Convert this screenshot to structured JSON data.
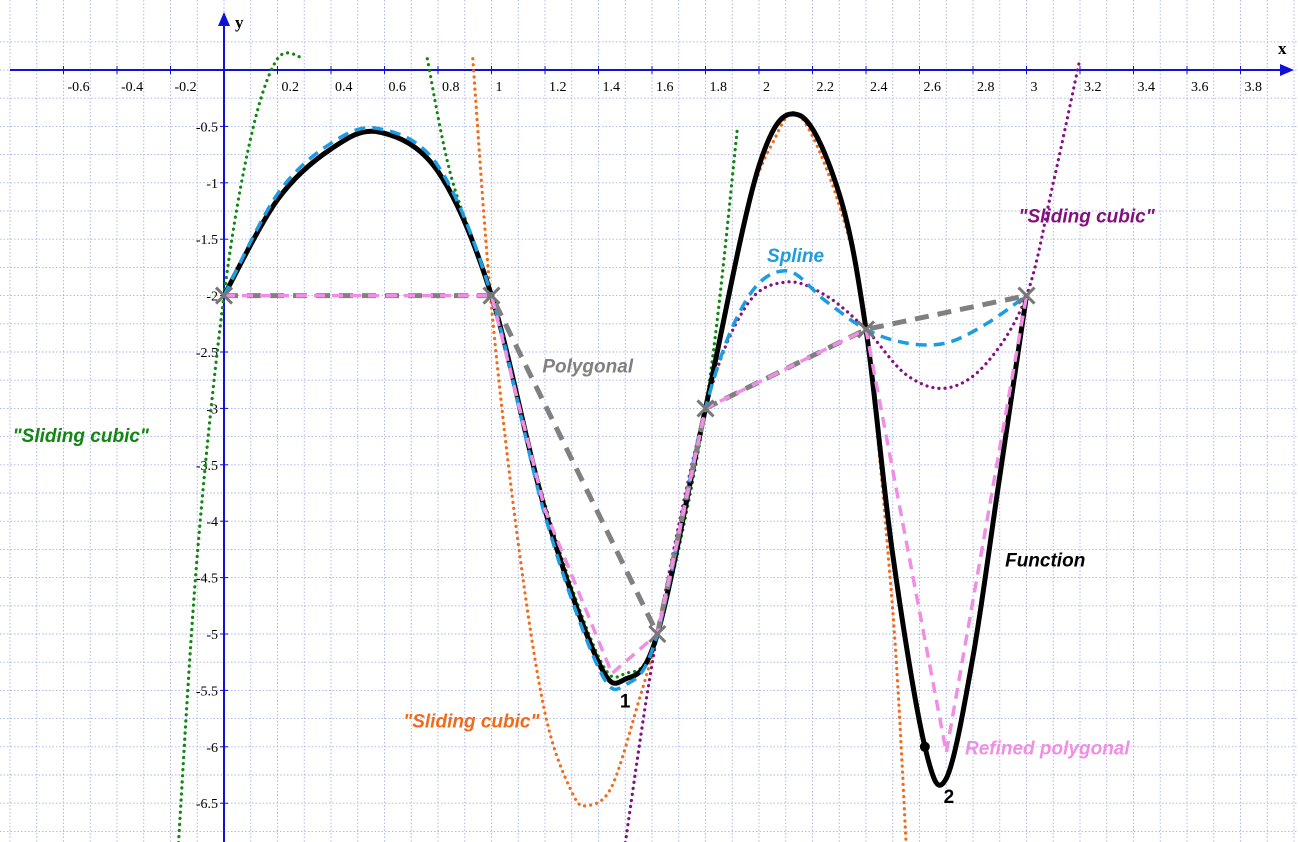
{
  "chart_data": {
    "type": "line",
    "xlabel": "x",
    "ylabel": "y",
    "xlim": [
      -0.8,
      3.95
    ],
    "ylim": [
      -6.85,
      0.1
    ],
    "grid": true,
    "x_ticks": [
      "-0.6",
      "-0.4",
      "-0.2",
      "0.2",
      "0.4",
      "0.6",
      "0.8",
      "1",
      "1.2",
      "1.4",
      "1.6",
      "1.8",
      "2",
      "2.2",
      "2.4",
      "2.6",
      "2.8",
      "3",
      "3.2",
      "3.4",
      "3.6",
      "3.8"
    ],
    "y_ticks": [
      "-0.5",
      "-1",
      "-1.5",
      "-2",
      "-2.5",
      "-3",
      "-3.5",
      "-4",
      "-4.5",
      "-5",
      "-5.5",
      "-6",
      "-6.5"
    ],
    "nodes": [
      {
        "x": 0,
        "y": -2
      },
      {
        "x": 1,
        "y": -2
      },
      {
        "x": 1.8,
        "y": -3
      },
      {
        "x": 1.62,
        "y": -5
      },
      {
        "x": 2.4,
        "y": -2.3
      },
      {
        "x": 3,
        "y": -2
      }
    ],
    "series": [
      {
        "name": "Function",
        "color": "#000000",
        "style": "solid",
        "x": [
          0,
          0.2,
          0.4,
          0.58,
          0.8,
          1.0,
          1.2,
          1.4,
          1.5,
          1.62,
          1.8,
          2.0,
          2.15,
          2.3,
          2.4,
          2.5,
          2.62,
          2.7,
          2.8,
          2.9,
          3.0
        ],
        "y": [
          -2,
          -1.15,
          -0.7,
          -0.55,
          -0.9,
          -2.0,
          -3.9,
          -5.25,
          -5.4,
          -5.0,
          -3.0,
          -0.85,
          -0.4,
          -1.1,
          -2.3,
          -4.3,
          -6.0,
          -6.28,
          -5.2,
          -3.6,
          -2.0
        ]
      },
      {
        "name": "Spline",
        "color": "#1e9ce0",
        "style": "dashed",
        "x": [
          0,
          0.2,
          0.4,
          0.58,
          0.8,
          1.0,
          1.2,
          1.4,
          1.5,
          1.62,
          1.8,
          1.95,
          2.1,
          2.25,
          2.4,
          2.55,
          2.7,
          2.85,
          3.0
        ],
        "y": [
          -2,
          -1.1,
          -0.65,
          -0.52,
          -0.85,
          -2.0,
          -3.95,
          -5.3,
          -5.45,
          -5.0,
          -3.0,
          -2.05,
          -1.78,
          -2.05,
          -2.3,
          -2.42,
          -2.42,
          -2.25,
          -2.0
        ]
      },
      {
        "name": "Polygonal",
        "color": "#808080",
        "style": "dashed",
        "x": [
          0,
          1,
          1.62,
          1.8,
          2.4,
          3.0
        ],
        "y": [
          -2,
          -2,
          -5,
          -3,
          -2.3,
          -2
        ]
      },
      {
        "name": "Refined polygonal",
        "color": "#ef8fe3",
        "style": "dashed",
        "x": [
          0,
          1,
          1.2,
          1.45,
          1.62,
          1.8,
          2.4,
          2.7,
          3.0
        ],
        "y": [
          -2,
          -2,
          -3.9,
          -5.35,
          -5.0,
          -3.0,
          -2.3,
          -6.05,
          -2.0
        ]
      },
      {
        "name": "\"Sliding cubic\"",
        "color": "#118611",
        "style": "dotted",
        "x": [
          -0.17,
          -0.1,
          0.0,
          0.1,
          0.2,
          0.3
        ],
        "y": [
          -6.85,
          -4.3,
          -2.0,
          -0.6,
          0.1,
          0.1
        ]
      },
      {
        "name": "\"Sliding cubic\"",
        "color": "#118611",
        "style": "dotted",
        "x": [
          0.76,
          0.85,
          1.0,
          1.2,
          1.4,
          1.5,
          1.62,
          1.8,
          1.92
        ],
        "y": [
          0.1,
          -0.95,
          -2.0,
          -3.85,
          -5.2,
          -5.35,
          -5.0,
          -3.0,
          -0.5
        ]
      },
      {
        "name": "\"Sliding cubic\"",
        "color": "#f26b1a",
        "style": "dotted",
        "x": [
          0.93,
          1.0,
          1.1,
          1.2,
          1.3,
          1.36,
          1.45,
          1.55,
          1.62,
          1.7,
          1.8,
          1.95,
          2.05,
          2.15,
          2.3,
          2.4,
          2.5,
          2.55
        ],
        "y": [
          0.1,
          -2.1,
          -4.2,
          -5.7,
          -6.4,
          -6.52,
          -6.35,
          -5.6,
          -5.0,
          -4.1,
          -3.0,
          -1.3,
          -0.65,
          -0.4,
          -1.2,
          -2.3,
          -4.8,
          -6.85
        ]
      },
      {
        "name": "\"Sliding cubic\"",
        "color": "#82107f",
        "style": "dotted",
        "x": [
          1.5,
          1.62,
          1.8,
          1.95,
          2.1,
          2.25,
          2.4,
          2.55,
          2.7,
          2.85,
          3.0,
          3.1,
          3.2
        ],
        "y": [
          -6.85,
          -5.0,
          -3.0,
          -2.1,
          -1.88,
          -2.0,
          -2.3,
          -2.7,
          -2.82,
          -2.6,
          -2.0,
          -1.0,
          0.1
        ]
      }
    ],
    "annotations": [
      {
        "text": "\"Sliding cubic\"",
        "color": "#118611",
        "x": -0.79,
        "y": -3.3
      },
      {
        "text": "Polygonal",
        "color": "#808080",
        "x": 1.19,
        "y": -2.68
      },
      {
        "text": "Spline",
        "color": "#1e9ce0",
        "x": 2.03,
        "y": -1.7
      },
      {
        "text": "\"Sliding cubic\"",
        "color": "#82107f",
        "x": 2.97,
        "y": -1.35
      },
      {
        "text": "\"Sliding cubic\"",
        "color": "#f26b1a",
        "x": 0.67,
        "y": -5.83
      },
      {
        "text": "Function",
        "color": "#000000",
        "x": 2.92,
        "y": -4.4
      },
      {
        "text": "Refined polygonal",
        "color": "#ef8fe3",
        "x": 2.77,
        "y": -6.07
      },
      {
        "text": "1",
        "color": "#000000",
        "x": 1.48,
        "y": -5.65
      },
      {
        "text": "2",
        "color": "#000000",
        "x": 2.69,
        "y": -6.5
      }
    ]
  }
}
